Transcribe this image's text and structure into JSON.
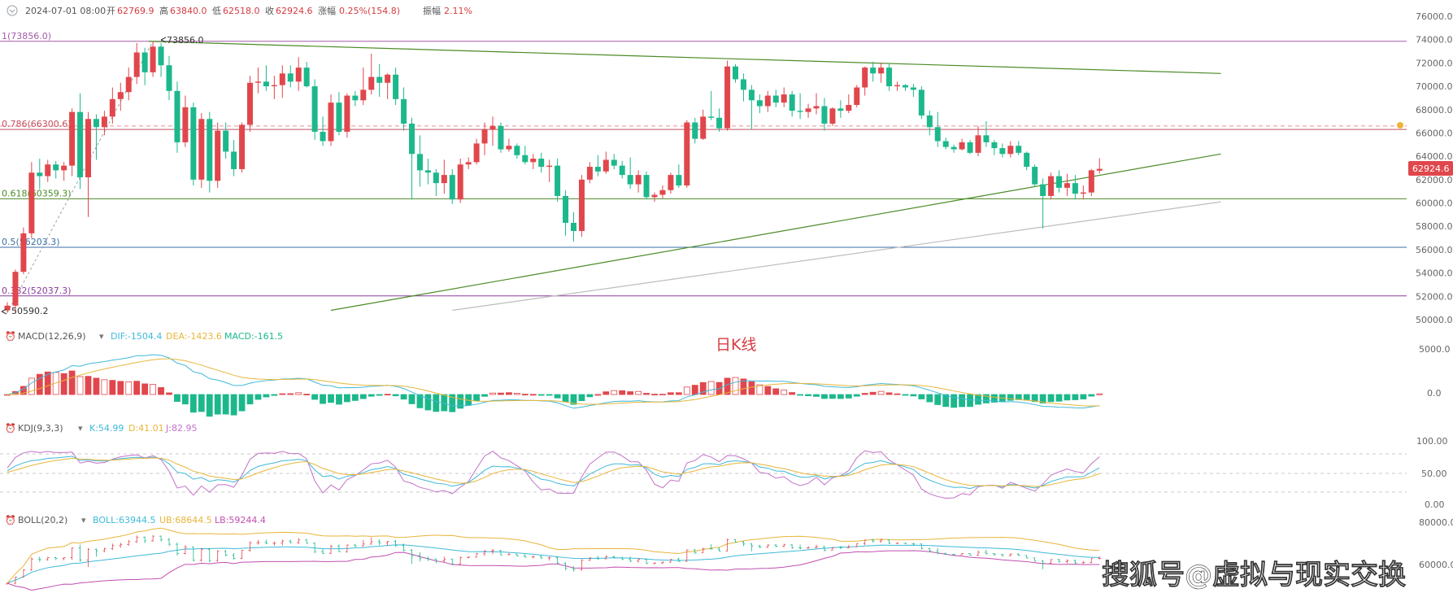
{
  "header": {
    "date": "2024-07-01 08:00",
    "open_label": "开",
    "open": "62769.9",
    "high_label": "高",
    "high": "63840.0",
    "low_label": "低",
    "low": "62518.0",
    "close_label": "收",
    "close": "62924.6",
    "change_label": "涨幅",
    "change": "0.25%(154.8)",
    "amplitude_label": "振幅",
    "amplitude": "2.11%"
  },
  "price_label": "62924.6",
  "chart_title": "日K线",
  "watermark": "搜狐号@虚拟与现实交换",
  "colors": {
    "up": "#e0474c",
    "down": "#1cb88c",
    "dif": "#3fb9d9",
    "dea": "#e8b53a",
    "kdj_j": "#c271c9",
    "boll_lb": "#c24fae",
    "fib": "#a35aa8",
    "trend": "#4b8a26"
  },
  "chart_data": {
    "type": "candlestick",
    "price_axis": {
      "ticks": [
        "76000.0",
        "74000.0",
        "72000.0",
        "70000.0",
        "68000.0",
        "66000.0",
        "64000.0",
        "62000.0",
        "60000.0",
        "58000.0",
        "56000.0",
        "54000.0",
        "52000.0",
        "50000.0"
      ],
      "ylim": [
        49000,
        77000
      ]
    },
    "fib_levels": [
      {
        "label": "1(73856.0)",
        "value": 73856.0
      },
      {
        "label": "0.786(66300.6)",
        "value": 66300.6
      },
      {
        "label": "0.618(60359.3)",
        "value": 60359.3
      },
      {
        "label": "0.5(56203.3)",
        "value": 56203.3
      },
      {
        "label": "0.382(52037.3)",
        "value": 52037.3
      }
    ],
    "annotations": {
      "high": "73856.0",
      "low": "50590.2"
    },
    "candles": [
      [
        50800,
        51500,
        50600,
        51200
      ],
      [
        51200,
        54300,
        50590.2,
        54100
      ],
      [
        54100,
        57900,
        53900,
        57400
      ],
      [
        57400,
        63500,
        57000,
        62600
      ],
      [
        62600,
        63800,
        61200,
        62300
      ],
      [
        62300,
        63700,
        61800,
        63300
      ],
      [
        63300,
        63600,
        62100,
        62800
      ],
      [
        62800,
        63500,
        61900,
        63200
      ],
      [
        63200,
        68100,
        62300,
        67800
      ],
      [
        67800,
        69400,
        61200,
        62200
      ],
      [
        62200,
        67800,
        58800,
        67200
      ],
      [
        67200,
        67600,
        63700,
        66500
      ],
      [
        66500,
        67900,
        65800,
        67400
      ],
      [
        67400,
        69900,
        66800,
        68900
      ],
      [
        68900,
        70300,
        67900,
        69500
      ],
      [
        69500,
        71600,
        68800,
        70800
      ],
      [
        70800,
        73700,
        70200,
        72900
      ],
      [
        72900,
        73300,
        70100,
        71200
      ],
      [
        71200,
        73856,
        70800,
        73400
      ],
      [
        73400,
        73700,
        70800,
        71800
      ],
      [
        71800,
        72600,
        68800,
        69600
      ],
      [
        69600,
        70400,
        64300,
        65200
      ],
      [
        65200,
        69200,
        64800,
        68200
      ],
      [
        68200,
        68600,
        61500,
        62000
      ],
      [
        62000,
        67700,
        61300,
        67200
      ],
      [
        67200,
        67800,
        60900,
        61900
      ],
      [
        61900,
        66900,
        61300,
        66200
      ],
      [
        66200,
        66900,
        63800,
        64400
      ],
      [
        64400,
        65400,
        62300,
        62900
      ],
      [
        62900,
        66900,
        62600,
        66700
      ],
      [
        66700,
        70900,
        66100,
        70300
      ],
      [
        70300,
        71600,
        69400,
        70400
      ],
      [
        70400,
        71800,
        69600,
        70000
      ],
      [
        70000,
        70900,
        68900,
        70100
      ],
      [
        70100,
        71800,
        69000,
        71100
      ],
      [
        71100,
        71800,
        69900,
        70400
      ],
      [
        70400,
        72500,
        69600,
        71600
      ],
      [
        71600,
        72100,
        69900,
        70000
      ],
      [
        70000,
        70600,
        65400,
        66100
      ],
      [
        66100,
        67400,
        64900,
        65300
      ],
      [
        65300,
        69300,
        64900,
        68600
      ],
      [
        68600,
        69500,
        65800,
        66100
      ],
      [
        66100,
        69400,
        65600,
        69200
      ],
      [
        69200,
        69600,
        68300,
        68800
      ],
      [
        68800,
        71600,
        68400,
        69700
      ],
      [
        69700,
        72800,
        69300,
        70800
      ],
      [
        70800,
        71900,
        69100,
        70300
      ],
      [
        70300,
        71100,
        68900,
        71000
      ],
      [
        71000,
        71600,
        68400,
        68900
      ],
      [
        68900,
        69900,
        66200,
        66800
      ],
      [
        66800,
        67300,
        60300,
        64200
      ],
      [
        64200,
        65800,
        61400,
        62800
      ],
      [
        62800,
        63800,
        61600,
        62600
      ],
      [
        62600,
        62900,
        60600,
        61700
      ],
      [
        61700,
        63700,
        60800,
        62400
      ],
      [
        62400,
        62900,
        59900,
        60300
      ],
      [
        60300,
        63800,
        60000,
        63300
      ],
      [
        63300,
        63900,
        62900,
        63500
      ],
      [
        63500,
        65500,
        63300,
        65100
      ],
      [
        65100,
        66900,
        64100,
        66300
      ],
      [
        66300,
        67400,
        64900,
        66600
      ],
      [
        66600,
        66900,
        64300,
        64600
      ],
      [
        64600,
        65500,
        64400,
        64900
      ],
      [
        64900,
        65100,
        63800,
        64100
      ],
      [
        64100,
        64900,
        63300,
        63500
      ],
      [
        63500,
        64200,
        62900,
        63800
      ],
      [
        63800,
        64300,
        62600,
        63100
      ],
      [
        63100,
        63700,
        61800,
        63200
      ],
      [
        63200,
        63800,
        60100,
        60600
      ],
      [
        60600,
        61100,
        57200,
        58300
      ],
      [
        58300,
        59200,
        56700,
        57600
      ],
      [
        57600,
        62400,
        57100,
        62000
      ],
      [
        62000,
        63500,
        61700,
        63100
      ],
      [
        63100,
        64100,
        62300,
        62700
      ],
      [
        62700,
        64400,
        62500,
        63700
      ],
      [
        63700,
        64200,
        62900,
        63200
      ],
      [
        63200,
        63600,
        62100,
        62400
      ],
      [
        62400,
        63900,
        61200,
        61600
      ],
      [
        61600,
        62800,
        60900,
        62400
      ],
      [
        62400,
        62700,
        60300,
        60500
      ],
      [
        60500,
        60900,
        60100,
        60700
      ],
      [
        60700,
        61500,
        60400,
        61100
      ],
      [
        61100,
        62600,
        60800,
        62400
      ],
      [
        62400,
        63300,
        61300,
        61500
      ],
      [
        61500,
        67100,
        61300,
        66900
      ],
      [
        66900,
        67300,
        65100,
        65500
      ],
      [
        65500,
        68000,
        65400,
        67400
      ],
      [
        67400,
        69600,
        67100,
        67300
      ],
      [
        67300,
        68100,
        66100,
        66400
      ],
      [
        66400,
        72200,
        66200,
        71700
      ],
      [
        71700,
        71900,
        70300,
        70600
      ],
      [
        70600,
        71100,
        68700,
        69700
      ],
      [
        69700,
        70100,
        66300,
        68800
      ],
      [
        68800,
        69300,
        67700,
        68300
      ],
      [
        68300,
        69600,
        67800,
        69200
      ],
      [
        69200,
        69700,
        68200,
        68600
      ],
      [
        68600,
        69900,
        68200,
        69300
      ],
      [
        69300,
        69600,
        67400,
        67900
      ],
      [
        67900,
        69400,
        67200,
        67800
      ],
      [
        67800,
        68500,
        67300,
        68100
      ],
      [
        68100,
        69400,
        67600,
        68300
      ],
      [
        68300,
        69000,
        66200,
        66800
      ],
      [
        66800,
        68200,
        66600,
        68100
      ],
      [
        68100,
        68800,
        67300,
        67900
      ],
      [
        67900,
        69300,
        67700,
        68400
      ],
      [
        68400,
        70100,
        68200,
        69900
      ],
      [
        69900,
        71700,
        69200,
        71600
      ],
      [
        71600,
        72100,
        70400,
        71100
      ],
      [
        71100,
        72000,
        70300,
        71600
      ],
      [
        71600,
        71900,
        69600,
        70000
      ],
      [
        70000,
        70400,
        69600,
        70100
      ],
      [
        70100,
        70200,
        69600,
        69900
      ],
      [
        69900,
        70200,
        69100,
        69700
      ],
      [
        69700,
        70000,
        67200,
        67500
      ],
      [
        67500,
        67900,
        65800,
        66500
      ],
      [
        66500,
        67800,
        64800,
        65300
      ],
      [
        65300,
        65600,
        64600,
        64800
      ],
      [
        64800,
        65000,
        64300,
        64600
      ],
      [
        64600,
        65500,
        64500,
        65200
      ],
      [
        65200,
        65400,
        64200,
        64300
      ],
      [
        64300,
        66600,
        64000,
        65800
      ],
      [
        65800,
        67000,
        64800,
        65200
      ],
      [
        65200,
        65400,
        64100,
        64700
      ],
      [
        64700,
        65100,
        63900,
        64200
      ],
      [
        64200,
        65300,
        63900,
        64900
      ],
      [
        64900,
        65300,
        64100,
        64300
      ],
      [
        64300,
        64400,
        62800,
        63100
      ],
      [
        63100,
        63300,
        61400,
        61600
      ],
      [
        61600,
        62100,
        57800,
        60600
      ],
      [
        60600,
        62600,
        60300,
        62300
      ],
      [
        62300,
        62800,
        60900,
        61300
      ],
      [
        61300,
        62500,
        60600,
        61700
      ],
      [
        61700,
        62400,
        60300,
        60800
      ],
      [
        60800,
        61500,
        60300,
        60900
      ],
      [
        60900,
        62900,
        60600,
        62800
      ],
      [
        62769.9,
        63840,
        62518,
        62924.6
      ]
    ],
    "x_range": [
      0,
      138
    ],
    "trend_lines": [
      {
        "from": [
          17.5,
          73856
        ],
        "to": [
          150,
          71100
        ]
      },
      {
        "from": [
          40,
          50800
        ],
        "to": [
          150,
          64200
        ]
      },
      {
        "from": [
          55,
          50800
        ],
        "to": [
          150,
          60100
        ]
      }
    ],
    "indicators": {
      "macd": {
        "label": "MACD(12,26,9)",
        "dif": "DIF:-1504.4",
        "dea": "DEA:-1423.6",
        "macd": "MACD:-161.5",
        "ticks": [
          "5000.0",
          "0.0"
        ]
      },
      "kdj": {
        "label": "KDJ(9,3,3)",
        "k": "K:54.99",
        "d": "D:41.01",
        "j": "J:82.95",
        "ticks": [
          "100.00",
          "50.00",
          "0.00"
        ]
      },
      "boll": {
        "label": "BOLL(20,2)",
        "boll": "BOLL:63944.5",
        "ub": "UB:68644.5",
        "lb": "LB:59244.4",
        "ticks": [
          "80000.0",
          "60000.0"
        ]
      }
    }
  }
}
